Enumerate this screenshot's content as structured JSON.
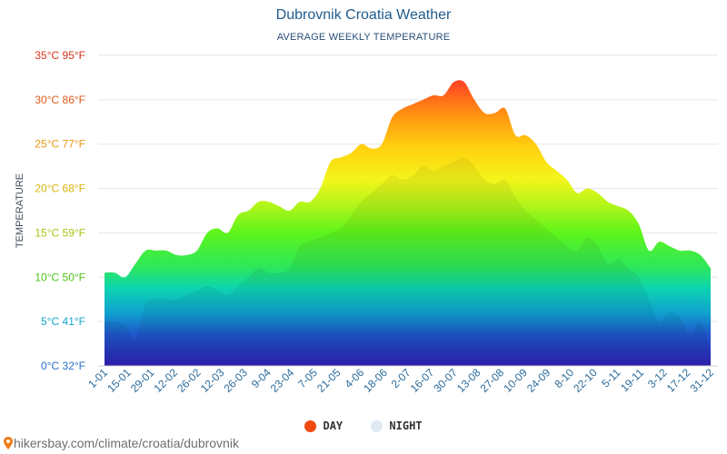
{
  "chart_data": {
    "type": "area",
    "title": "Dubrovnik Croatia Weather",
    "subtitle": "AVERAGE WEEKLY TEMPERATURE",
    "ylabel": "TEMPERATURE",
    "ylim": [
      0,
      35
    ],
    "y_ticks": [
      {
        "value": 0,
        "label": "0°C 32°F",
        "color": "#2a72c4"
      },
      {
        "value": 5,
        "label": "5°C 41°F",
        "color": "#14a6c9"
      },
      {
        "value": 10,
        "label": "10°C 50°F",
        "color": "#4fc31b"
      },
      {
        "value": 15,
        "label": "15°C 59°F",
        "color": "#a8c612"
      },
      {
        "value": 20,
        "label": "20°C 68°F",
        "color": "#d8b50c"
      },
      {
        "value": 25,
        "label": "25°C 77°F",
        "color": "#e89a14"
      },
      {
        "value": 30,
        "label": "30°C 86°F",
        "color": "#e05a1a"
      },
      {
        "value": 35,
        "label": "35°C 95°F",
        "color": "#d8341a"
      }
    ],
    "x_tick_labels": [
      "1-01",
      "15-01",
      "29-01",
      "12-02",
      "26-02",
      "12-03",
      "26-03",
      "9-04",
      "23-04",
      "7-05",
      "21-05",
      "4-06",
      "18-06",
      "2-07",
      "16-07",
      "30-07",
      "13-08",
      "27-08",
      "10-09",
      "24-09",
      "8-10",
      "22-10",
      "5-11",
      "19-11",
      "3-12",
      "17-12",
      "31-12"
    ],
    "series": [
      {
        "name": "DAY",
        "legend_color": "#f04a12",
        "values": [
          10.5,
          10.5,
          10,
          11.5,
          13,
          13,
          13,
          12.5,
          12.5,
          13,
          15,
          15.5,
          15,
          17,
          17.5,
          18.5,
          18.5,
          18,
          17.5,
          18.5,
          18.5,
          20,
          23,
          23.5,
          24,
          25,
          24.5,
          25,
          28,
          29,
          29.5,
          30,
          30.5,
          30.5,
          32,
          32,
          30,
          28.5,
          28.5,
          29,
          26,
          26,
          25,
          23,
          22,
          21,
          19.5,
          20,
          19.5,
          18.5,
          18,
          17.5,
          16,
          13,
          14,
          13.5,
          13,
          13,
          12.5,
          11
        ]
      },
      {
        "name": "NIGHT",
        "legend_color": "#dfe9f2",
        "values": [
          5,
          5,
          4.5,
          3,
          7,
          7.5,
          7.5,
          7.5,
          8,
          8.5,
          9,
          8.5,
          8,
          9,
          10,
          11,
          10.5,
          10.5,
          11,
          13.5,
          14,
          14.5,
          15,
          15.5,
          17,
          18.5,
          19.5,
          20.5,
          21.5,
          21,
          21.5,
          22.5,
          22,
          22.5,
          23,
          23.5,
          22.5,
          21,
          20.5,
          21,
          19,
          17.5,
          16.5,
          15.5,
          14.5,
          13.5,
          13,
          14.5,
          13.5,
          11.5,
          12,
          11,
          10,
          7.5,
          5,
          6,
          5.5,
          3.5,
          5,
          1.5
        ]
      }
    ]
  },
  "legend": {
    "day": "DAY",
    "night": "NIGHT"
  },
  "source": "hikersbay.com/climate/croatia/dubrovnik"
}
